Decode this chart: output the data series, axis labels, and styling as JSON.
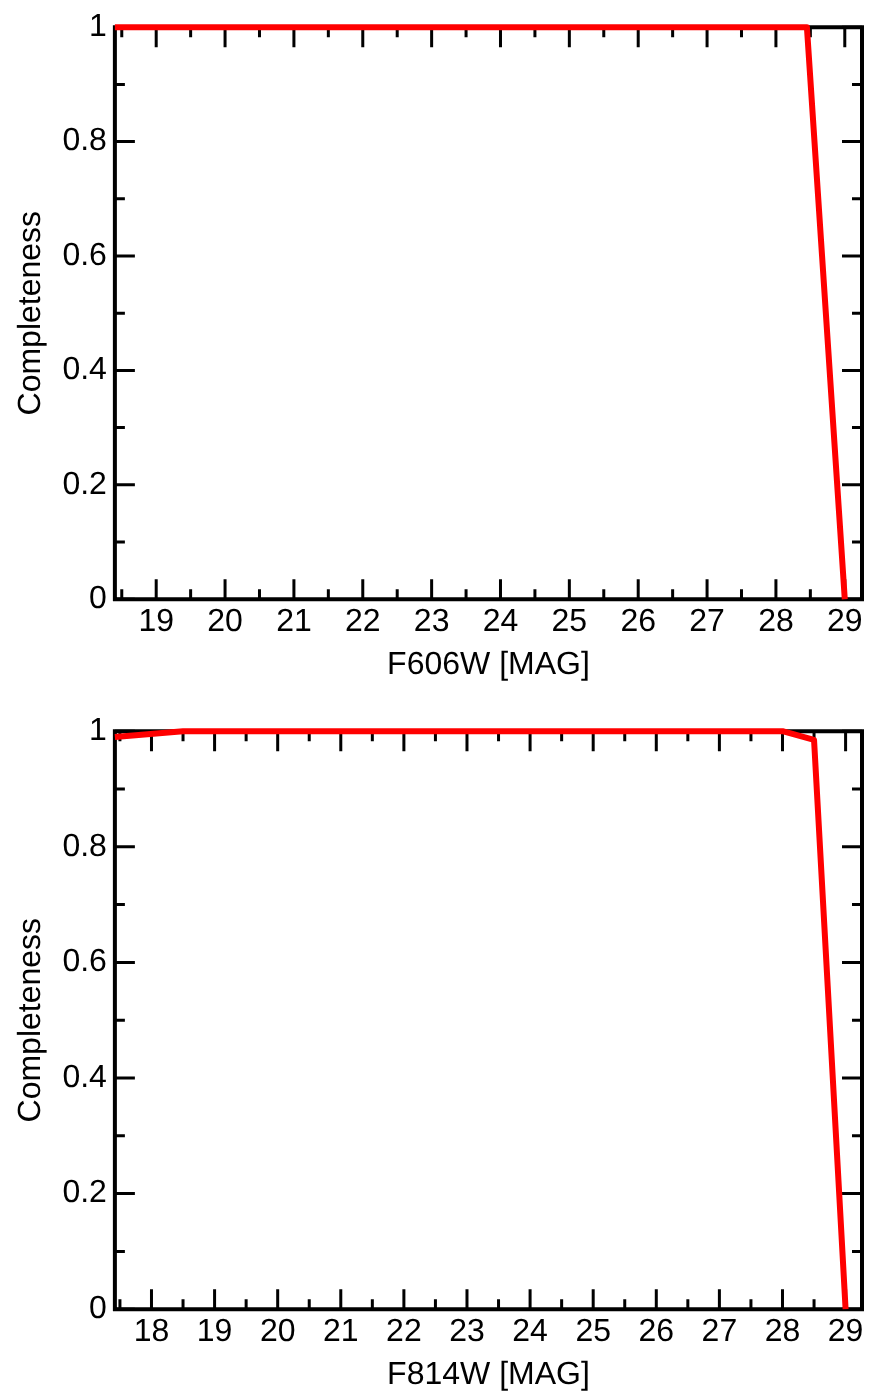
{
  "chart_data": [
    {
      "type": "line",
      "xlabel": "F606W [MAG]",
      "ylabel": "Completeness",
      "grid": false,
      "marker": "none",
      "line_style": "solid",
      "series": [
        {
          "color": "#ff0000",
          "x": [
            18.4,
            28.45,
            29.0
          ],
          "values": [
            1,
            1,
            0
          ]
        }
      ],
      "xlim": [
        18.4,
        29.25
      ],
      "ylim": [
        0,
        1
      ],
      "xticks": [
        {
          "value": 18.5,
          "label": null
        },
        19,
        {
          "value": 19.5,
          "label": null
        },
        20,
        {
          "value": 20.5,
          "label": null
        },
        21,
        {
          "value": 21.5,
          "label": null
        },
        22,
        {
          "value": 22.5,
          "label": null
        },
        23,
        {
          "value": 23.5,
          "label": null
        },
        24,
        {
          "value": 24.5,
          "label": null
        },
        25,
        {
          "value": 25.5,
          "label": null
        },
        26,
        {
          "value": 26.5,
          "label": null
        },
        27,
        {
          "value": 27.5,
          "label": null
        },
        28,
        {
          "value": 28.5,
          "label": null
        },
        29
      ],
      "yticks": [
        0,
        {
          "value": 0.1,
          "label": null
        },
        0.2,
        {
          "value": 0.3,
          "label": null
        },
        0.4,
        {
          "value": 0.5,
          "label": null
        },
        0.6,
        {
          "value": 0.7,
          "label": null
        },
        0.8,
        {
          "value": 0.9,
          "label": null
        },
        1
      ]
    },
    {
      "type": "line",
      "xlabel": "F814W [MAG]",
      "ylabel": "Completeness",
      "grid": false,
      "marker": "none",
      "line_style": "solid",
      "series": [
        {
          "color": "#ff0000",
          "x": [
            17.42,
            18.5,
            28.0,
            28.5,
            29.0
          ],
          "values": [
            0.99,
            1,
            1,
            0.985,
            0
          ]
        }
      ],
      "xlim": [
        17.42,
        29.26
      ],
      "ylim": [
        0,
        1
      ],
      "xticks": [
        {
          "value": 17.5,
          "label": null
        },
        18,
        {
          "value": 18.5,
          "label": null
        },
        19,
        {
          "value": 19.5,
          "label": null
        },
        20,
        {
          "value": 20.5,
          "label": null
        },
        21,
        {
          "value": 21.5,
          "label": null
        },
        22,
        {
          "value": 22.5,
          "label": null
        },
        23,
        {
          "value": 23.5,
          "label": null
        },
        24,
        {
          "value": 24.5,
          "label": null
        },
        25,
        {
          "value": 25.5,
          "label": null
        },
        26,
        {
          "value": 26.5,
          "label": null
        },
        27,
        {
          "value": 27.5,
          "label": null
        },
        28,
        {
          "value": 28.5,
          "label": null
        },
        29
      ],
      "yticks": [
        0,
        {
          "value": 0.1,
          "label": null
        },
        0.2,
        {
          "value": 0.3,
          "label": null
        },
        0.4,
        {
          "value": 0.5,
          "label": null
        },
        0.6,
        {
          "value": 0.7,
          "label": null
        },
        0.8,
        {
          "value": 0.9,
          "label": null
        },
        1
      ]
    }
  ]
}
